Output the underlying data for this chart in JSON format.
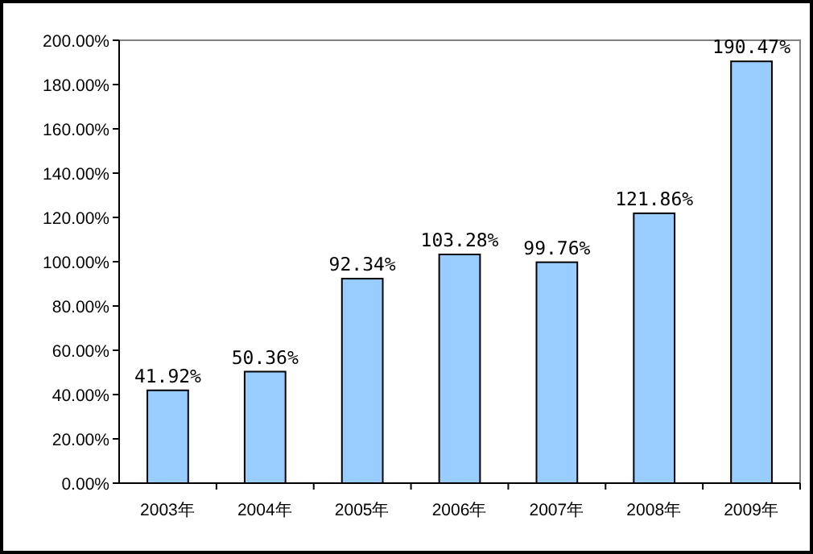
{
  "chart_data": {
    "type": "bar",
    "categories": [
      "2003年",
      "2004年",
      "2005年",
      "2006年",
      "2007年",
      "2008年",
      "2009年"
    ],
    "values": [
      41.92,
      50.36,
      92.34,
      103.28,
      99.76,
      121.86,
      190.47
    ],
    "value_labels": [
      "41.92%",
      "50.36%",
      "92.34%",
      "103.28%",
      "99.76%",
      "121.86%",
      "190.47%"
    ],
    "color": "#99ccff",
    "ylim": [
      0,
      200
    ],
    "yticks": [
      {
        "value": 0,
        "label": "0.00%"
      },
      {
        "value": 20,
        "label": "20.00%"
      },
      {
        "value": 40,
        "label": "40.00%"
      },
      {
        "value": 60,
        "label": "60.00%"
      },
      {
        "value": 80,
        "label": "80.00%"
      },
      {
        "value": 100,
        "label": "100.00%"
      },
      {
        "value": 120,
        "label": "120.00%"
      },
      {
        "value": 140,
        "label": "140.00%"
      },
      {
        "value": 160,
        "label": "160.00%"
      },
      {
        "value": 180,
        "label": "180.00%"
      },
      {
        "value": 200,
        "label": "200.00%"
      }
    ],
    "grid": false
  }
}
